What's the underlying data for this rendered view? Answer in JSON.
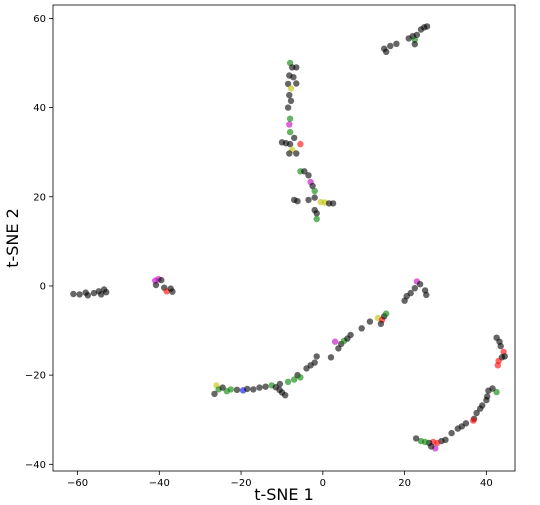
{
  "chart_data": {
    "type": "scatter",
    "title": "",
    "xlabel": "t-SNE 1",
    "ylabel": "t-SNE 2",
    "xlim": [
      -66,
      47
    ],
    "ylim": [
      -41.5,
      63
    ],
    "xticks": [
      -60,
      -40,
      -20,
      0,
      20,
      40
    ],
    "yticks": [
      -40,
      -20,
      0,
      20,
      40,
      60
    ],
    "grid": false,
    "legend": "none",
    "marker_opacity": 0.6,
    "colors": {
      "black": "#000000",
      "green": "#008000",
      "magenta": "#bf00bf",
      "red": "#ff0000",
      "olive": "#bfbf00",
      "blue": "#0000ff"
    },
    "points": [
      {
        "x": -61,
        "y": -1.8,
        "c": "black"
      },
      {
        "x": -59.5,
        "y": -1.9,
        "c": "black"
      },
      {
        "x": -58,
        "y": -1.5,
        "c": "black"
      },
      {
        "x": -57.5,
        "y": -2.1,
        "c": "black"
      },
      {
        "x": -56,
        "y": -1.6,
        "c": "black"
      },
      {
        "x": -54.8,
        "y": -1.2,
        "c": "black"
      },
      {
        "x": -54.2,
        "y": -1.9,
        "c": "black"
      },
      {
        "x": -53.5,
        "y": -0.8,
        "c": "black"
      },
      {
        "x": -53,
        "y": -1.4,
        "c": "black"
      },
      {
        "x": -41,
        "y": 1.2,
        "c": "magenta"
      },
      {
        "x": -40.2,
        "y": 1.5,
        "c": "magenta"
      },
      {
        "x": -39.5,
        "y": 1.3,
        "c": "black"
      },
      {
        "x": -40.8,
        "y": 0.2,
        "c": "black"
      },
      {
        "x": -38.8,
        "y": -0.4,
        "c": "black"
      },
      {
        "x": -38.2,
        "y": -1.2,
        "c": "red"
      },
      {
        "x": -37.2,
        "y": -0.6,
        "c": "black"
      },
      {
        "x": -36.8,
        "y": -1.3,
        "c": "black"
      },
      {
        "x": -26,
        "y": -22.3,
        "c": "olive"
      },
      {
        "x": -25.5,
        "y": -23.2,
        "c": "green"
      },
      {
        "x": -26.5,
        "y": -24.2,
        "c": "black"
      },
      {
        "x": -24.5,
        "y": -22.8,
        "c": "black"
      },
      {
        "x": -23.5,
        "y": -23.6,
        "c": "green"
      },
      {
        "x": -22.5,
        "y": -23.2,
        "c": "green"
      },
      {
        "x": -21,
        "y": -23.3,
        "c": "black"
      },
      {
        "x": -19.5,
        "y": -23.4,
        "c": "blue"
      },
      {
        "x": -18.5,
        "y": -23.1,
        "c": "black"
      },
      {
        "x": -17,
        "y": -23.2,
        "c": "black"
      },
      {
        "x": -15.5,
        "y": -22.8,
        "c": "black"
      },
      {
        "x": -14,
        "y": -22.6,
        "c": "black"
      },
      {
        "x": -12.5,
        "y": -22.3,
        "c": "green"
      },
      {
        "x": -11.5,
        "y": -22.7,
        "c": "black"
      },
      {
        "x": -10.5,
        "y": -22.0,
        "c": "black"
      },
      {
        "x": -10.6,
        "y": -23.3,
        "c": "black"
      },
      {
        "x": -10.0,
        "y": -23.9,
        "c": "black"
      },
      {
        "x": -9.2,
        "y": -24.5,
        "c": "black"
      },
      {
        "x": -8.5,
        "y": -21.5,
        "c": "green"
      },
      {
        "x": -7.0,
        "y": -21.0,
        "c": "green"
      },
      {
        "x": -6.2,
        "y": -20.0,
        "c": "black"
      },
      {
        "x": -5.5,
        "y": -20.5,
        "c": "green"
      },
      {
        "x": -4.0,
        "y": -18.5,
        "c": "black"
      },
      {
        "x": -3.0,
        "y": -17.8,
        "c": "black"
      },
      {
        "x": -2.0,
        "y": -17.2,
        "c": "black"
      },
      {
        "x": -1.5,
        "y": -15.8,
        "c": "black"
      },
      {
        "x": 2.0,
        "y": -16.0,
        "c": "black"
      },
      {
        "x": 3.0,
        "y": -12.5,
        "c": "magenta"
      },
      {
        "x": 3.8,
        "y": -14.0,
        "c": "black"
      },
      {
        "x": 4.5,
        "y": -13.0,
        "c": "black"
      },
      {
        "x": 5.2,
        "y": -12.3,
        "c": "green"
      },
      {
        "x": 6.0,
        "y": -11.8,
        "c": "black"
      },
      {
        "x": 6.8,
        "y": -11.0,
        "c": "black"
      },
      {
        "x": 9.5,
        "y": -9.5,
        "c": "black"
      },
      {
        "x": 11.5,
        "y": -8.0,
        "c": "black"
      },
      {
        "x": 13.5,
        "y": -7.2,
        "c": "olive"
      },
      {
        "x": 14.5,
        "y": -7.6,
        "c": "red"
      },
      {
        "x": 15.0,
        "y": -6.8,
        "c": "black"
      },
      {
        "x": 15.5,
        "y": -6.2,
        "c": "green"
      },
      {
        "x": 14.2,
        "y": -8.5,
        "c": "black"
      },
      {
        "x": 23.0,
        "y": 1.0,
        "c": "magenta"
      },
      {
        "x": 23.8,
        "y": 0.4,
        "c": "black"
      },
      {
        "x": 22.5,
        "y": -0.5,
        "c": "black"
      },
      {
        "x": 21.5,
        "y": -1.6,
        "c": "black"
      },
      {
        "x": 20.5,
        "y": -2.3,
        "c": "black"
      },
      {
        "x": 20.0,
        "y": -3.3,
        "c": "black"
      },
      {
        "x": 25.0,
        "y": -1.0,
        "c": "black"
      },
      {
        "x": 25.3,
        "y": -2.0,
        "c": "black"
      },
      {
        "x": 42.5,
        "y": -11.6,
        "c": "black"
      },
      {
        "x": 43.2,
        "y": -12.5,
        "c": "black"
      },
      {
        "x": 43.5,
        "y": -13.5,
        "c": "black"
      },
      {
        "x": 44.2,
        "y": -14.8,
        "c": "red"
      },
      {
        "x": 43.8,
        "y": -16.0,
        "c": "black"
      },
      {
        "x": 44.5,
        "y": -15.8,
        "c": "black"
      },
      {
        "x": 43.0,
        "y": -16.8,
        "c": "red"
      },
      {
        "x": 42.8,
        "y": -17.8,
        "c": "red"
      },
      {
        "x": 42.5,
        "y": -23.8,
        "c": "green"
      },
      {
        "x": 41.5,
        "y": -23.0,
        "c": "black"
      },
      {
        "x": 40.5,
        "y": -23.5,
        "c": "black"
      },
      {
        "x": 40.2,
        "y": -24.8,
        "c": "black"
      },
      {
        "x": 40.0,
        "y": -25.6,
        "c": "black"
      },
      {
        "x": 39.0,
        "y": -26.8,
        "c": "black"
      },
      {
        "x": 38.5,
        "y": -27.5,
        "c": "black"
      },
      {
        "x": 37.6,
        "y": -28.5,
        "c": "black"
      },
      {
        "x": 37.0,
        "y": -29.8,
        "c": "black"
      },
      {
        "x": 36.8,
        "y": -30.2,
        "c": "red"
      },
      {
        "x": 35.0,
        "y": -30.8,
        "c": "black"
      },
      {
        "x": 34.0,
        "y": -31.5,
        "c": "black"
      },
      {
        "x": 33.0,
        "y": -32.0,
        "c": "black"
      },
      {
        "x": 31.5,
        "y": -33.0,
        "c": "black"
      },
      {
        "x": 30.0,
        "y": -34.5,
        "c": "black"
      },
      {
        "x": 29.0,
        "y": -34.8,
        "c": "black"
      },
      {
        "x": 28.0,
        "y": -35.2,
        "c": "red"
      },
      {
        "x": 27.0,
        "y": -35.0,
        "c": "red"
      },
      {
        "x": 27.5,
        "y": -36.4,
        "c": "magenta"
      },
      {
        "x": 26.5,
        "y": -36.0,
        "c": "black"
      },
      {
        "x": 26.0,
        "y": -35.2,
        "c": "black"
      },
      {
        "x": 25.0,
        "y": -35.0,
        "c": "green"
      },
      {
        "x": 24.0,
        "y": -34.8,
        "c": "green"
      },
      {
        "x": 22.8,
        "y": -34.2,
        "c": "black"
      },
      {
        "x": -8.0,
        "y": 50.0,
        "c": "green"
      },
      {
        "x": -7.5,
        "y": 49.0,
        "c": "black"
      },
      {
        "x": -6.5,
        "y": 49.0,
        "c": "black"
      },
      {
        "x": -8.2,
        "y": 47.2,
        "c": "black"
      },
      {
        "x": -7.2,
        "y": 46.8,
        "c": "black"
      },
      {
        "x": -8.5,
        "y": 45.3,
        "c": "black"
      },
      {
        "x": -6.5,
        "y": 45.4,
        "c": "black"
      },
      {
        "x": -7.8,
        "y": 44.3,
        "c": "olive"
      },
      {
        "x": -8.2,
        "y": 42.8,
        "c": "black"
      },
      {
        "x": -7.8,
        "y": 41.5,
        "c": "black"
      },
      {
        "x": -8.5,
        "y": 40.0,
        "c": "black"
      },
      {
        "x": -8.0,
        "y": 37.5,
        "c": "green"
      },
      {
        "x": -8.2,
        "y": 36.2,
        "c": "magenta"
      },
      {
        "x": -8.0,
        "y": 34.5,
        "c": "green"
      },
      {
        "x": -7.0,
        "y": 33.2,
        "c": "black"
      },
      {
        "x": -10.0,
        "y": 32.2,
        "c": "black"
      },
      {
        "x": -9.0,
        "y": 32.0,
        "c": "black"
      },
      {
        "x": -8.0,
        "y": 31.8,
        "c": "black"
      },
      {
        "x": -5.5,
        "y": 31.8,
        "c": "red"
      },
      {
        "x": -7.5,
        "y": 30.5,
        "c": "olive"
      },
      {
        "x": -8.2,
        "y": 29.7,
        "c": "black"
      },
      {
        "x": -6.5,
        "y": 29.7,
        "c": "black"
      },
      {
        "x": -5.5,
        "y": 25.7,
        "c": "green"
      },
      {
        "x": -4.5,
        "y": 25.7,
        "c": "black"
      },
      {
        "x": -3.5,
        "y": 24.8,
        "c": "black"
      },
      {
        "x": -3.0,
        "y": 23.3,
        "c": "magenta"
      },
      {
        "x": -2.5,
        "y": 22.4,
        "c": "black"
      },
      {
        "x": -2.0,
        "y": 21.3,
        "c": "green"
      },
      {
        "x": -7.0,
        "y": 19.3,
        "c": "black"
      },
      {
        "x": -6.2,
        "y": 19.0,
        "c": "black"
      },
      {
        "x": -3.5,
        "y": 19.3,
        "c": "black"
      },
      {
        "x": -2.0,
        "y": 19.8,
        "c": "black"
      },
      {
        "x": -0.5,
        "y": 18.8,
        "c": "olive"
      },
      {
        "x": 0.5,
        "y": 18.7,
        "c": "olive"
      },
      {
        "x": 1.5,
        "y": 18.5,
        "c": "black"
      },
      {
        "x": 2.5,
        "y": 18.5,
        "c": "black"
      },
      {
        "x": -2.0,
        "y": 17.0,
        "c": "black"
      },
      {
        "x": -1.5,
        "y": 16.3,
        "c": "black"
      },
      {
        "x": -1.5,
        "y": 15.0,
        "c": "green"
      },
      {
        "x": 15.0,
        "y": 53.2,
        "c": "black"
      },
      {
        "x": 15.5,
        "y": 52.5,
        "c": "black"
      },
      {
        "x": 16.5,
        "y": 53.8,
        "c": "black"
      },
      {
        "x": 18.0,
        "y": 54.3,
        "c": "black"
      },
      {
        "x": 21.0,
        "y": 55.5,
        "c": "black"
      },
      {
        "x": 22.0,
        "y": 56.0,
        "c": "black"
      },
      {
        "x": 22.5,
        "y": 55.2,
        "c": "green"
      },
      {
        "x": 23.0,
        "y": 56.3,
        "c": "black"
      },
      {
        "x": 22.5,
        "y": 54.2,
        "c": "black"
      },
      {
        "x": 24.0,
        "y": 57.5,
        "c": "black"
      },
      {
        "x": 24.8,
        "y": 58.0,
        "c": "black"
      },
      {
        "x": 25.5,
        "y": 58.2,
        "c": "black"
      }
    ]
  }
}
